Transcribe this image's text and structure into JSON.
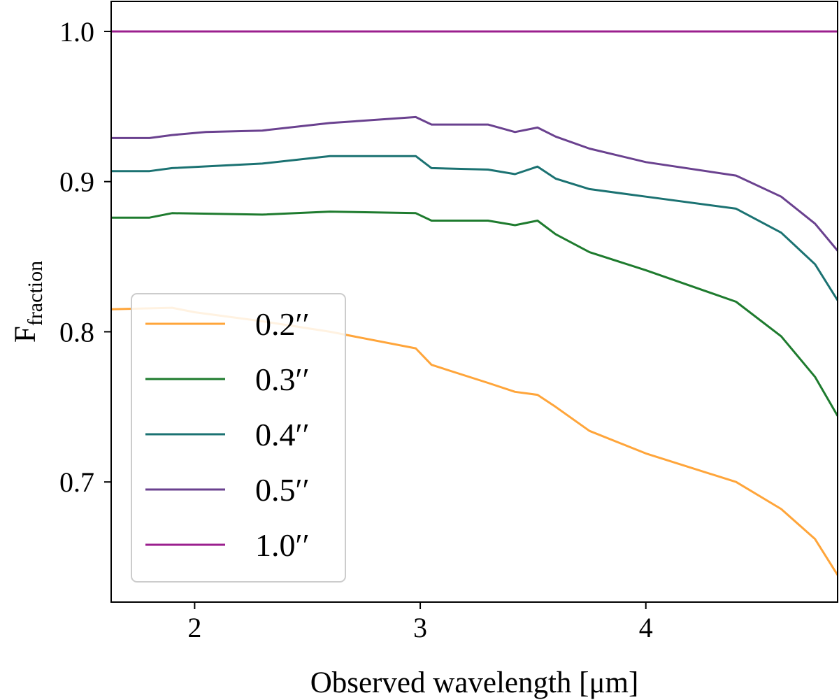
{
  "chart_data": {
    "type": "line",
    "title": "",
    "xlabel": "Observed wavelength [μm]",
    "ylabel": "F",
    "ylabel_subscript": "fraction",
    "xlim": [
      1.63,
      4.85
    ],
    "ylim": [
      0.62,
      1.02
    ],
    "xticks": [
      2,
      3,
      4
    ],
    "yticks": [
      0.7,
      0.8,
      0.9,
      1.0
    ],
    "xtick_labels": [
      "2",
      "3",
      "4"
    ],
    "ytick_labels": [
      "0.7",
      "0.8",
      "0.9",
      "1.0"
    ],
    "grid": false,
    "legend_position": "lower-left",
    "series": [
      {
        "name": "0.2′′",
        "color": "#ffa53a",
        "x": [
          1.63,
          1.9,
          2.0,
          2.3,
          2.6,
          2.98,
          3.05,
          3.3,
          3.42,
          3.52,
          3.6,
          3.75,
          4.0,
          4.4,
          4.6,
          4.75,
          4.85
        ],
        "y": [
          0.815,
          0.816,
          0.813,
          0.807,
          0.8,
          0.789,
          0.778,
          0.766,
          0.76,
          0.758,
          0.75,
          0.734,
          0.719,
          0.7,
          0.682,
          0.662,
          0.638
        ]
      },
      {
        "name": "0.3′′",
        "color": "#1e7b2e",
        "x": [
          1.63,
          1.8,
          1.9,
          2.3,
          2.6,
          2.98,
          3.05,
          3.3,
          3.42,
          3.52,
          3.6,
          3.75,
          4.0,
          4.4,
          4.6,
          4.75,
          4.85
        ],
        "y": [
          0.876,
          0.876,
          0.879,
          0.878,
          0.88,
          0.879,
          0.874,
          0.874,
          0.871,
          0.874,
          0.865,
          0.853,
          0.841,
          0.82,
          0.797,
          0.77,
          0.744
        ]
      },
      {
        "name": "0.4′′",
        "color": "#1b7272",
        "x": [
          1.63,
          1.8,
          1.9,
          2.3,
          2.6,
          2.98,
          3.05,
          3.3,
          3.42,
          3.52,
          3.6,
          3.75,
          4.0,
          4.4,
          4.6,
          4.75,
          4.85
        ],
        "y": [
          0.907,
          0.907,
          0.909,
          0.912,
          0.917,
          0.917,
          0.909,
          0.908,
          0.905,
          0.91,
          0.902,
          0.895,
          0.89,
          0.882,
          0.866,
          0.845,
          0.821
        ]
      },
      {
        "name": "0.5′′",
        "color": "#6a418f",
        "x": [
          1.63,
          1.8,
          1.9,
          2.05,
          2.3,
          2.6,
          2.98,
          3.05,
          3.3,
          3.42,
          3.52,
          3.6,
          3.75,
          4.0,
          4.4,
          4.6,
          4.75,
          4.85
        ],
        "y": [
          0.929,
          0.929,
          0.931,
          0.933,
          0.934,
          0.939,
          0.943,
          0.938,
          0.938,
          0.933,
          0.936,
          0.93,
          0.922,
          0.913,
          0.904,
          0.89,
          0.872,
          0.854
        ]
      },
      {
        "name": "1.0′′",
        "color": "#9b1f8e",
        "x": [
          1.63,
          4.85
        ],
        "y": [
          1.0,
          1.0
        ]
      }
    ]
  }
}
